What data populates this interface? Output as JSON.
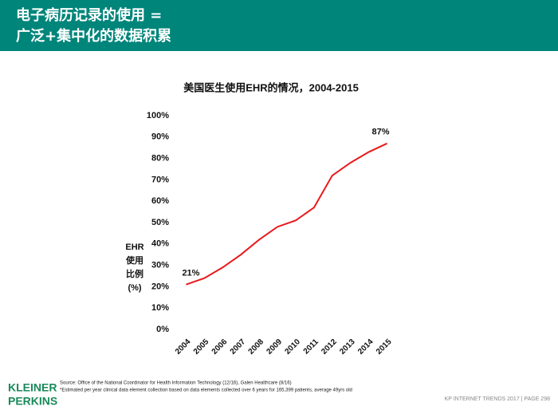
{
  "header": {
    "title_lines": [
      "电子病历记录的使用 =",
      "广泛+集中化的数据积累"
    ]
  },
  "chart_data": {
    "type": "line",
    "title": "美国医生使用EHR的情况，2004-2015",
    "y_label": "EHR使用比例(%)",
    "categories": [
      "2004",
      "2005",
      "2006",
      "2007",
      "2008",
      "2009",
      "2010",
      "2011",
      "2012",
      "2013",
      "2014",
      "2015"
    ],
    "series": [
      {
        "name": "EHR",
        "color": "#e8191b",
        "values": [
          21,
          24,
          29,
          35,
          42,
          48,
          51,
          57,
          72,
          78,
          83,
          87
        ],
        "value_labels": [
          "21%",
          null,
          null,
          null,
          null,
          null,
          null,
          null,
          null,
          null,
          null,
          "87%"
        ]
      }
    ],
    "ylim": [
      0,
      100
    ],
    "yticks": [
      {
        "value": 0,
        "label": "0%"
      },
      {
        "value": 10,
        "label": "10%"
      },
      {
        "value": 20,
        "label": "20%"
      },
      {
        "value": 30,
        "label": "30%"
      },
      {
        "value": 40,
        "label": "40%"
      },
      {
        "value": 50,
        "label": "50%"
      },
      {
        "value": 60,
        "label": "60%"
      },
      {
        "value": 70,
        "label": "70%"
      },
      {
        "value": 80,
        "label": "80%"
      },
      {
        "value": 90,
        "label": "90%"
      },
      {
        "value": 100,
        "label": "100%"
      }
    ],
    "grid": false
  },
  "footer": {
    "source": "Source: Office of the National Coordinator for Health Information Technology (12/16), Galen Healthcare (8/16)",
    "note": "*Estimated per year clinical data element collection based on data elements collected over 6 years for 165,399 patients, average 49yrs old",
    "logo_lines": [
      "KLEINER",
      "PERKINS"
    ],
    "page": "KP INTERNET TRENDS 2017  |  PAGE 298"
  }
}
